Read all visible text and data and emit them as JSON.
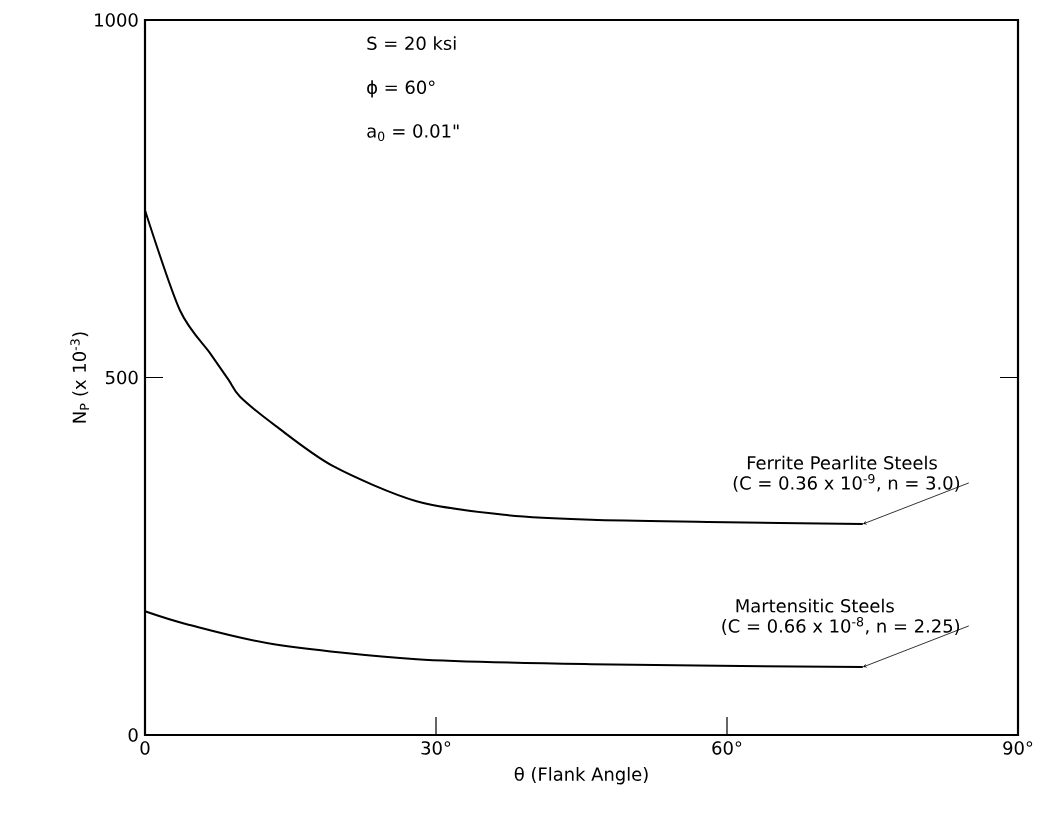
{
  "chart_data": {
    "type": "line",
    "xlabel": "θ  (Flank Angle)",
    "ylabel": "N$_{P}$ (x 10$^{-3}$)",
    "xlim": [
      0,
      90
    ],
    "ylim": [
      0,
      1000
    ],
    "xticks": [
      0,
      {
        "value": 30,
        "label": "30°"
      },
      {
        "value": 60,
        "label": "60°"
      },
      {
        "value": 90,
        "label": "90°"
      }
    ],
    "yticks": [
      0,
      500,
      1000
    ],
    "grid": false,
    "legend": false,
    "marker": "none",
    "line_style": "solid",
    "series": [
      {
        "name": "Ferrite Pearlite Steels",
        "color": "#000000",
        "x": [
          0,
          3.6,
          6.7,
          8.6,
          9.8,
          13.5,
          19.4,
          28,
          37,
          46,
          58,
          74
        ],
        "values": [
          734,
          594,
          534,
          497,
          473,
          432,
          376,
          327,
          308,
          301,
          298,
          295
        ]
      },
      {
        "name": "Martensitic Steels",
        "color": "#000000",
        "x": [
          0,
          4.3,
          13.3,
          28,
          46,
          74
        ],
        "values": [
          173,
          155,
          127,
          106,
          99,
          95
        ]
      }
    ],
    "annotations": [
      "S = 20 ksi",
      "ϕ = 60°",
      "a$_{0}$ = 0.01\"",
      {
        "text": "(C = 0.36 x 10$^{-9}$, n = 3.0)",
        "x": 74,
        "y": 295
      },
      {
        "text": "(C = 0.66 x 10$^{-8}$, n = 2.25)",
        "x": 74,
        "y": 95
      }
    ]
  }
}
